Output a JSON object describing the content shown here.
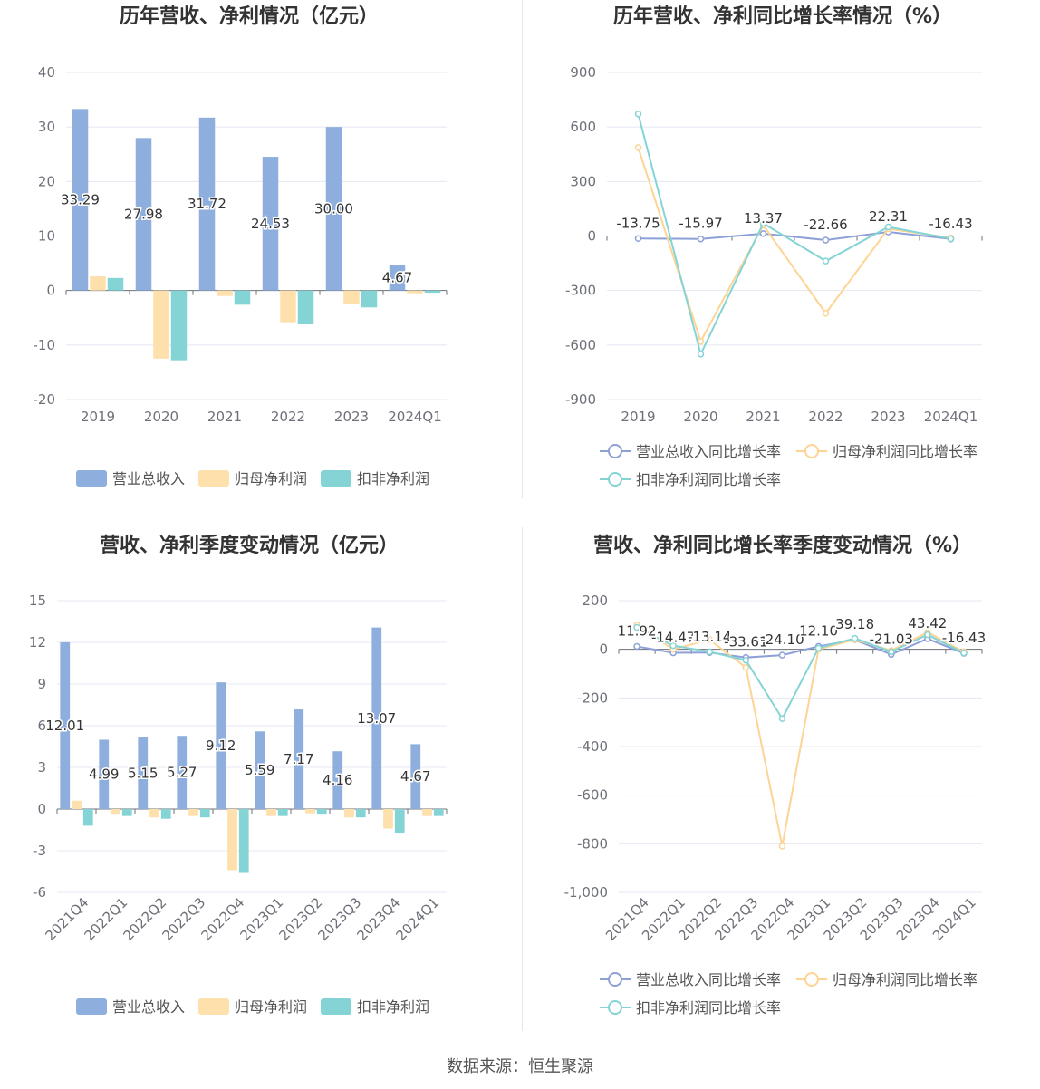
{
  "source": "数据来源：恒生聚源",
  "chart_data": [
    {
      "id": "annual-values",
      "type": "bar",
      "title": "历年营收、净利情况（亿元）",
      "categories": [
        "2019",
        "2020",
        "2021",
        "2022",
        "2023",
        "2024Q1"
      ],
      "ylim": [
        -20,
        40
      ],
      "yticks": [
        40,
        30,
        20,
        10,
        0,
        -10,
        -20
      ],
      "series": [
        {
          "name": "营业总收入",
          "color": "#8eaedd",
          "values": [
            33.29,
            27.98,
            31.72,
            24.53,
            30.0,
            4.67
          ],
          "labels": [
            "33.29",
            "27.98",
            "31.72",
            "24.53",
            "30.00",
            "4.67"
          ]
        },
        {
          "name": "归母净利润",
          "color": "#fde0ac",
          "values": [
            2.6,
            -12.5,
            -1.0,
            -5.8,
            -2.4,
            -0.5
          ]
        },
        {
          "name": "扣非净利润",
          "color": "#84d4d6",
          "values": [
            2.3,
            -12.8,
            -2.6,
            -6.2,
            -3.1,
            -0.4
          ]
        }
      ]
    },
    {
      "id": "annual-growth",
      "type": "line",
      "title": "历年营收、净利同比增长率情况（%）",
      "categories": [
        "2019",
        "2020",
        "2021",
        "2022",
        "2023",
        "2024Q1"
      ],
      "ylim": [
        -900,
        900
      ],
      "yticks": [
        900,
        600,
        300,
        0,
        -300,
        -600,
        -900
      ],
      "series": [
        {
          "name": "营业总收入同比增长率",
          "color": "#8ea1d7",
          "values": [
            -13.75,
            -15.97,
            13.37,
            -22.66,
            22.31,
            -16.43
          ],
          "labels": [
            "-13.75",
            "-15.97",
            "13.37",
            "-22.66",
            "22.31",
            "-16.43"
          ]
        },
        {
          "name": "归母净利润同比增长率",
          "color": "#fdd494",
          "values": [
            487,
            -580,
            60,
            -425,
            40,
            -10
          ]
        },
        {
          "name": "扣非净利润同比增长率",
          "color": "#84d4d6",
          "values": [
            672,
            -650,
            70,
            -138,
            50,
            -15
          ]
        }
      ]
    },
    {
      "id": "quarterly-values",
      "type": "bar",
      "title": "营收、净利季度变动情况（亿元）",
      "categories": [
        "2021Q4",
        "2022Q1",
        "2022Q2",
        "2022Q3",
        "2022Q4",
        "2023Q1",
        "2023Q2",
        "2023Q3",
        "2023Q4",
        "2024Q1"
      ],
      "ylim": [
        -6,
        15
      ],
      "yticks": [
        15,
        12,
        9,
        6,
        3,
        0,
        -3,
        -6
      ],
      "series": [
        {
          "name": "营业总收入",
          "color": "#8eaedd",
          "values": [
            12.01,
            4.99,
            5.15,
            5.27,
            9.12,
            5.59,
            7.17,
            4.16,
            13.07,
            4.67
          ],
          "labels": [
            "12.01",
            "4.99",
            "5.15",
            "5.27",
            "9.12",
            "5.59",
            "7.17",
            "4.16",
            "13.07",
            "4.67"
          ]
        },
        {
          "name": "归母净利润",
          "color": "#fde0ac",
          "values": [
            0.6,
            -0.4,
            -0.6,
            -0.5,
            -4.4,
            -0.5,
            -0.3,
            -0.6,
            -1.4,
            -0.5
          ]
        },
        {
          "name": "扣非净利润",
          "color": "#84d4d6",
          "values": [
            -1.2,
            -0.5,
            -0.7,
            -0.6,
            -4.6,
            -0.5,
            -0.4,
            -0.6,
            -1.7,
            -0.5
          ]
        }
      ]
    },
    {
      "id": "quarterly-growth",
      "type": "line",
      "title": "营收、净利同比增长率季度变动情况（%）",
      "categories": [
        "2021Q4",
        "2022Q1",
        "2022Q2",
        "2022Q3",
        "2022Q4",
        "2023Q1",
        "2023Q2",
        "2023Q3",
        "2023Q4",
        "2024Q1"
      ],
      "ylim": [
        -1000,
        200
      ],
      "yticks": [
        200,
        0,
        -200,
        -400,
        -600,
        -800,
        -1000
      ],
      "ytickLabels": [
        "200",
        "0",
        "-200",
        "-400",
        "-600",
        "-800",
        "-1,000"
      ],
      "series": [
        {
          "name": "营业总收入同比增长率",
          "color": "#8ea1d7",
          "values": [
            11.92,
            -14.47,
            -13.14,
            -33.61,
            -24.1,
            12.1,
            39.18,
            -21.03,
            43.42,
            -16.43
          ],
          "labels": [
            "11.92",
            "-14.47",
            "-13.14",
            "-33.61",
            "-24.10",
            "12.10",
            "39.18",
            "-21.03",
            "43.42",
            "-16.43"
          ]
        },
        {
          "name": "归母净利润同比增长率",
          "color": "#fdd494",
          "values": [
            100,
            0,
            40,
            -75,
            -810,
            0,
            40,
            -5,
            70,
            -10
          ]
        },
        {
          "name": "扣非净利润同比增长率",
          "color": "#84d4d6",
          "values": [
            90,
            15,
            -10,
            -45,
            -285,
            5,
            45,
            -10,
            60,
            -15
          ]
        }
      ]
    }
  ]
}
